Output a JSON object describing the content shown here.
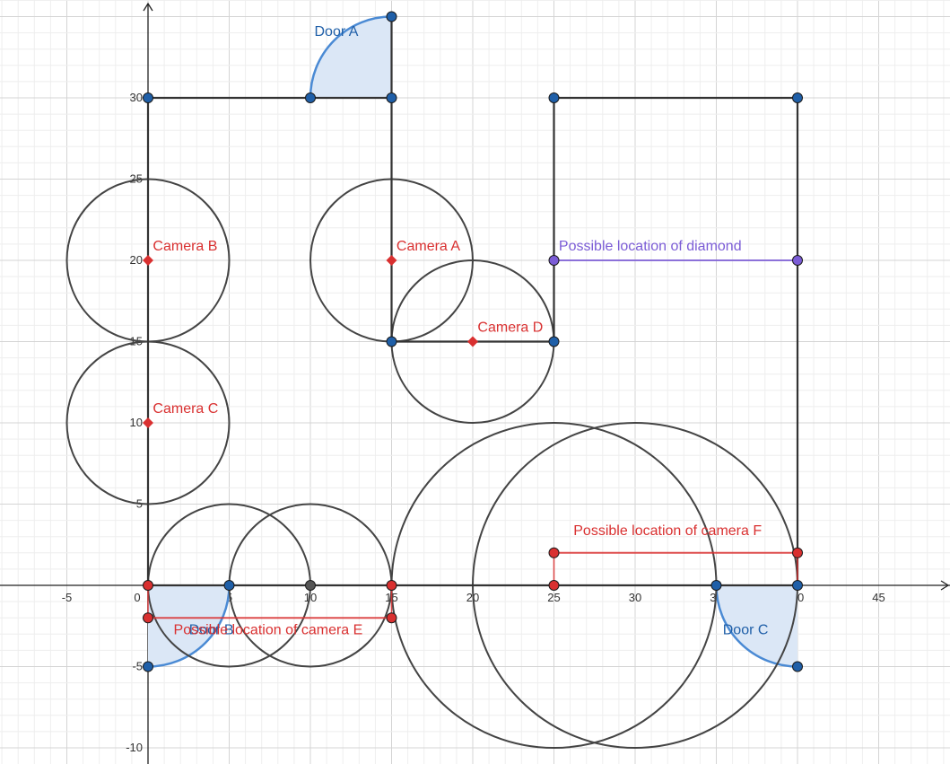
{
  "colors": {
    "wall": "#333333",
    "circle": "#444444",
    "blue": "#1f5fa8",
    "door_fill": "#dbe7f6",
    "door_arc": "#4a8ad4",
    "red": "#d93030",
    "purple": "#7b5cd6",
    "gray_point": "#555555",
    "grid_minor": "#eeeeee",
    "grid_major": "#d4d4d4",
    "axis": "#222222"
  },
  "axes": {
    "x_ticks": [
      "-5",
      "0",
      "5",
      "10",
      "15",
      "20",
      "25",
      "30",
      "35",
      "40",
      "45"
    ],
    "x_tick_values": [
      -5,
      0,
      5,
      10,
      15,
      20,
      25,
      30,
      35,
      40,
      45
    ],
    "y_ticks": [
      "-10",
      "-5",
      "5",
      "10",
      "15",
      "20",
      "25",
      "30"
    ],
    "y_tick_values": [
      -10,
      -5,
      5,
      10,
      15,
      20,
      25,
      30
    ]
  },
  "walls": [
    {
      "x1": 0,
      "y1": 0,
      "x2": 0,
      "y2": 30
    },
    {
      "x1": 0,
      "y1": 30,
      "x2": 15,
      "y2": 30
    },
    {
      "x1": 15,
      "y1": 30,
      "x2": 15,
      "y2": 15
    },
    {
      "x1": 15,
      "y1": 15,
      "x2": 25,
      "y2": 15
    },
    {
      "x1": 25,
      "y1": 15,
      "x2": 25,
      "y2": 30
    },
    {
      "x1": 25,
      "y1": 30,
      "x2": 40,
      "y2": 30
    },
    {
      "x1": 40,
      "y1": 30,
      "x2": 40,
      "y2": 0
    },
    {
      "x1": 0,
      "y1": 0,
      "x2": 40,
      "y2": 0
    },
    {
      "x1": 15,
      "y1": 30,
      "x2": 15,
      "y2": 35
    }
  ],
  "circles": [
    {
      "cx": 0,
      "cy": 20,
      "r": 5
    },
    {
      "cx": 0,
      "cy": 10,
      "r": 5
    },
    {
      "cx": 15,
      "cy": 20,
      "r": 5
    },
    {
      "cx": 20,
      "cy": 15,
      "r": 5
    },
    {
      "cx": 5,
      "cy": 0,
      "r": 5
    },
    {
      "cx": 10,
      "cy": 0,
      "r": 5
    },
    {
      "cx": 25,
      "cy": 0,
      "r": 10
    },
    {
      "cx": 30,
      "cy": 0,
      "r": 10
    }
  ],
  "doors": [
    {
      "label": "Door A",
      "cx": 15,
      "cy": 30,
      "r": 5,
      "a1": 90,
      "a2": 180,
      "label_x": 11.6,
      "label_y": 33.8
    },
    {
      "label": "Door B",
      "cx": 0,
      "cy": 0,
      "r": 5,
      "a1": 270,
      "a2": 360,
      "label_x": 3.9,
      "label_y": -3.0
    },
    {
      "label": "Door C",
      "cx": 40,
      "cy": 0,
      "r": 5,
      "a1": 180,
      "a2": 270,
      "label_x": 36.8,
      "label_y": -3.0
    }
  ],
  "cameras": [
    {
      "label": "Camera A",
      "x": 15,
      "y": 20,
      "label_x": 15.3,
      "label_y": 20.6
    },
    {
      "label": "Camera B",
      "x": 0,
      "y": 20,
      "label_x": 0.3,
      "label_y": 20.6
    },
    {
      "label": "Camera C",
      "x": 0,
      "y": 10,
      "label_x": 0.3,
      "label_y": 10.6
    },
    {
      "label": "Camera D",
      "x": 20,
      "y": 15,
      "label_x": 20.3,
      "label_y": 15.6
    }
  ],
  "ranges": [
    {
      "label": "Possible location of camera E",
      "x1": 0,
      "y1": -2,
      "x2": 15,
      "y2": -2,
      "color": "red",
      "label_x": 7.4,
      "label_y": -3.0,
      "extra": [
        {
          "x1": 0,
          "y1": 0,
          "x2": 0,
          "y2": -2
        },
        {
          "x1": 15,
          "y1": 0,
          "x2": 15,
          "y2": -2
        }
      ]
    },
    {
      "label": "Possible location of camera F",
      "x1": 25,
      "y1": 2,
      "x2": 40,
      "y2": 2,
      "color": "red",
      "label_x": 32.0,
      "label_y": 3.1,
      "extra": [
        {
          "x1": 25,
          "y1": 0,
          "x2": 25,
          "y2": 2
        },
        {
          "x1": 40,
          "y1": 0,
          "x2": 40,
          "y2": 2
        }
      ]
    },
    {
      "label": "Possible location of diamond",
      "x1": 25,
      "y1": 20,
      "x2": 40,
      "y2": 20,
      "color": "purple",
      "label_x": 25.3,
      "label_y": 20.6,
      "extra": []
    }
  ],
  "points_blue": [
    {
      "x": 0,
      "y": 30
    },
    {
      "x": 10,
      "y": 30
    },
    {
      "x": 15,
      "y": 30
    },
    {
      "x": 15,
      "y": 35
    },
    {
      "x": 25,
      "y": 30
    },
    {
      "x": 40,
      "y": 30
    },
    {
      "x": 15,
      "y": 15
    },
    {
      "x": 25,
      "y": 15
    },
    {
      "x": 5,
      "y": 0
    },
    {
      "x": 35,
      "y": 0
    },
    {
      "x": 40,
      "y": 0
    },
    {
      "x": 0,
      "y": -5
    },
    {
      "x": 40,
      "y": -5
    }
  ],
  "points_red": [
    {
      "x": 0,
      "y": 0
    },
    {
      "x": 15,
      "y": 0
    },
    {
      "x": 25,
      "y": 0
    },
    {
      "x": 0,
      "y": -2
    },
    {
      "x": 15,
      "y": -2
    },
    {
      "x": 25,
      "y": 2
    },
    {
      "x": 40,
      "y": 2
    }
  ],
  "points_purple": [
    {
      "x": 25,
      "y": 20
    },
    {
      "x": 40,
      "y": 20
    }
  ],
  "points_gray": [
    {
      "x": 10,
      "y": 0
    }
  ]
}
